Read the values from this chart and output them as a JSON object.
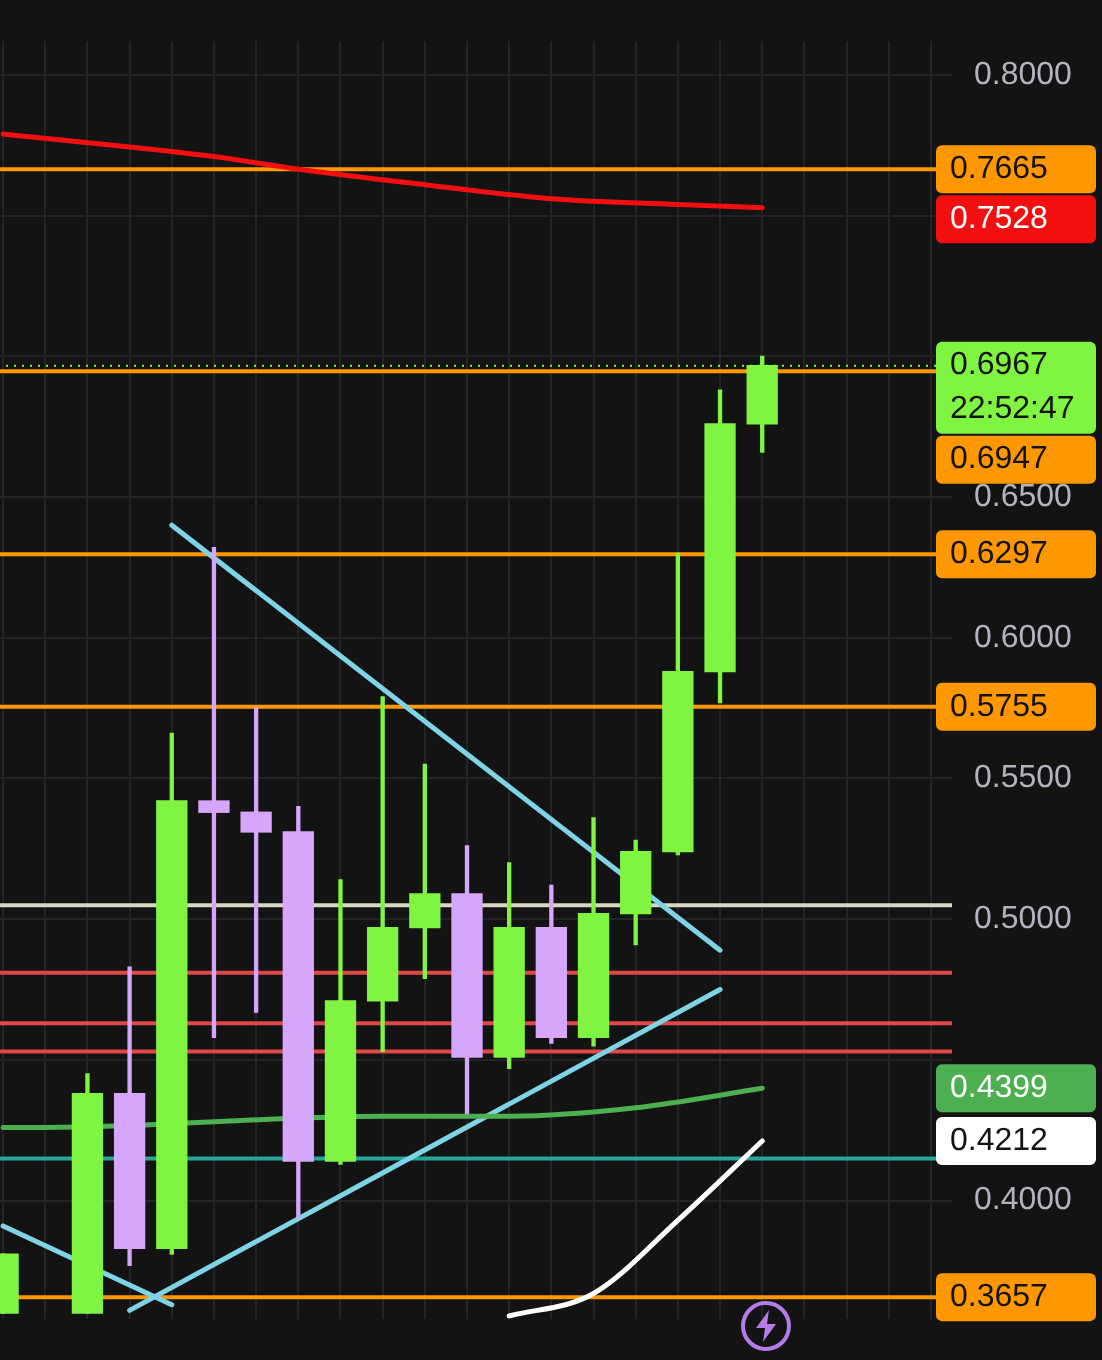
{
  "chart_data": {
    "type": "candlestick",
    "categories": [
      null,
      null,
      null,
      null,
      null,
      null,
      null,
      null,
      null,
      null,
      null,
      null,
      null,
      null,
      null,
      null,
      null,
      null,
      null,
      null,
      null,
      null,
      null
    ],
    "ohlc": [
      [
        0.36,
        0.381,
        0.36,
        0.381
      ],
      null,
      [
        0.36,
        0.445,
        0.36,
        0.438
      ],
      [
        0.438,
        0.483,
        0.377,
        0.383
      ],
      [
        0.383,
        0.566,
        0.381,
        0.542
      ],
      [
        0.542,
        0.632,
        0.458,
        0.538
      ],
      [
        0.538,
        0.575,
        0.467,
        0.531
      ],
      [
        0.531,
        0.54,
        0.394,
        0.414
      ],
      [
        0.414,
        0.514,
        0.413,
        0.471
      ],
      [
        0.471,
        0.579,
        0.453,
        0.497
      ],
      [
        0.497,
        0.555,
        0.479,
        0.509
      ],
      [
        0.509,
        0.526,
        0.431,
        0.451
      ],
      [
        0.451,
        0.52,
        0.447,
        0.497
      ],
      [
        0.497,
        0.512,
        0.456,
        0.458
      ],
      [
        0.458,
        0.536,
        0.455,
        0.502
      ],
      [
        0.502,
        0.528,
        0.491,
        0.524
      ],
      [
        0.524,
        0.63,
        0.523,
        0.588
      ],
      [
        0.588,
        0.688,
        0.577,
        0.676
      ],
      [
        0.676,
        0.7,
        0.666,
        0.6967
      ],
      null,
      null,
      null,
      null
    ],
    "colors": [
      "#7ff542",
      null,
      "#7ff542",
      "#d5a6fb",
      "#7ff542",
      "#d5a6fb",
      "#d5a6fb",
      "#d5a6fb",
      "#7ff542",
      "#7ff542",
      "#7ff542",
      "#d5a6fb",
      "#7ff542",
      "#d5a6fb",
      "#7ff542",
      "#7ff542",
      "#7ff542",
      "#7ff542",
      "#7ff542",
      null,
      null,
      null,
      null
    ],
    "series": [
      {
        "type": "line",
        "color": "#f20f0f",
        "values": [
          0.779,
          null,
          null,
          null,
          null,
          0.771,
          null,
          0.7665,
          null,
          null,
          0.761,
          null,
          null,
          0.756,
          null,
          null,
          0.754,
          null,
          0.7528,
          null,
          null,
          null,
          null
        ]
      },
      {
        "type": "line",
        "color": "#4caf50",
        "values": [
          0.426,
          0.426,
          null,
          null,
          null,
          null,
          null,
          null,
          null,
          0.43,
          null,
          null,
          0.43,
          null,
          null,
          0.433,
          null,
          null,
          0.4399,
          null,
          null,
          null,
          null
        ]
      },
      {
        "type": "line",
        "color": "#ffffff",
        "values": [
          null,
          null,
          null,
          null,
          null,
          null,
          null,
          null,
          null,
          null,
          null,
          null,
          0.359,
          null,
          0.367,
          null,
          0.393,
          null,
          0.4212,
          null,
          null,
          null,
          null
        ]
      },
      {
        "type": "line",
        "color": "#7fd3e6",
        "values": [
          null,
          null,
          null,
          null,
          0.64,
          null,
          null,
          null,
          null,
          null,
          null,
          null,
          null,
          null,
          null,
          null,
          null,
          0.489,
          null,
          null,
          null,
          null,
          null
        ]
      },
      {
        "type": "line",
        "color": "#7fd3e6",
        "values": [
          null,
          null,
          null,
          0.361,
          null,
          null,
          null,
          null,
          null,
          null,
          null,
          null,
          null,
          null,
          null,
          null,
          null,
          0.475,
          null,
          null,
          null,
          null,
          null
        ]
      },
      {
        "type": "line",
        "color": "#7fd3e6",
        "values": [
          0.391,
          null,
          null,
          null,
          0.363,
          null,
          null,
          null,
          null,
          null,
          null,
          null,
          null,
          null,
          null,
          null,
          null,
          null,
          null,
          null,
          null,
          null,
          null
        ]
      }
    ],
    "ylim": [
      0.358,
      0.812
    ],
    "yticks": [
      {
        "value": 0.4,
        "label": "0.4000"
      },
      {
        "value": 0.45,
        "label": null
      },
      {
        "value": 0.5,
        "label": "0.5000"
      },
      {
        "value": 0.55,
        "label": "0.5500"
      },
      {
        "value": 0.6,
        "label": "0.6000"
      },
      {
        "value": 0.65,
        "label": "0.6500"
      },
      {
        "value": 0.7,
        "label": null
      },
      {
        "value": 0.75,
        "label": null
      },
      {
        "value": 0.8,
        "label": "0.8000"
      }
    ],
    "ref_lines": [
      {
        "axis": "y",
        "value": 0.7665,
        "label": "0.7665",
        "color": "#ff9800"
      },
      {
        "axis": "y",
        "value": 0.6967,
        "label": "0.6967",
        "color": "#7ff542",
        "line_style": "dotted"
      },
      {
        "axis": "y",
        "value": 0.6947,
        "label": "0.6947",
        "color": "#ff9800"
      },
      {
        "axis": "y",
        "value": 0.6297,
        "label": "0.6297",
        "color": "#ff9800"
      },
      {
        "axis": "y",
        "value": 0.5755,
        "label": "0.5755",
        "color": "#ff9800"
      },
      {
        "axis": "y",
        "value": 0.505,
        "color": "#d8d8c0"
      },
      {
        "axis": "y",
        "value": 0.481,
        "color": "#e04848"
      },
      {
        "axis": "y",
        "value": 0.463,
        "color": "#e04848"
      },
      {
        "axis": "y",
        "value": 0.453,
        "color": "#e04848"
      },
      {
        "axis": "y",
        "value": 0.415,
        "color": "#26a69a"
      },
      {
        "axis": "y",
        "value": 0.3657,
        "label": "0.3657",
        "color": "#ff9800"
      }
    ],
    "annotations": [
      "22:52:47",
      "0.7528",
      "0.4399",
      "0.4212"
    ],
    "grid": true,
    "legend": false,
    "tick_labels": "y"
  }
}
